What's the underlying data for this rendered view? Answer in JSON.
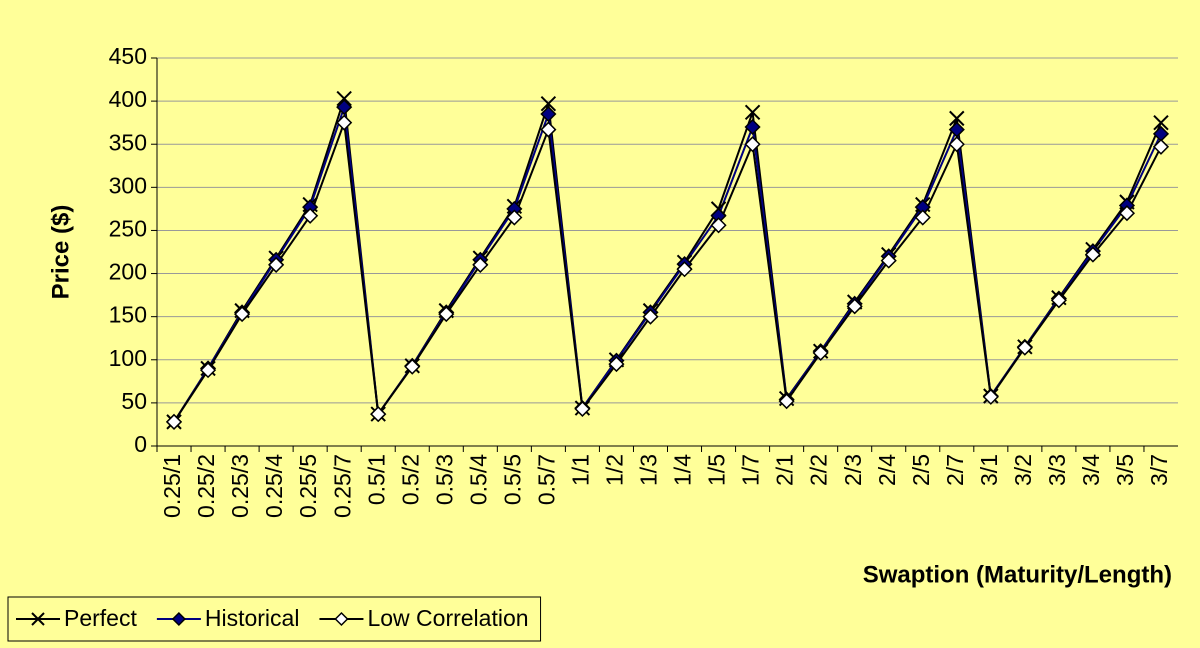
{
  "chart_data": {
    "type": "line",
    "y_label": "Price ($)",
    "x_label": "Swaption (Maturity/Length)",
    "categories": [
      "0.25/1",
      "0.25/2",
      "0.25/3",
      "0.25/4",
      "0.25/5",
      "0.25/7",
      "0.5/1",
      "0.5/2",
      "0.5/3",
      "0.5/4",
      "0.5/5",
      "0.5/7",
      "1/1",
      "1/2",
      "1/3",
      "1/4",
      "1/5",
      "1/7",
      "2/1",
      "2/2",
      "2/3",
      "2/4",
      "2/5",
      "2/7",
      "3/1",
      "3/2",
      "3/3",
      "3/4",
      "3/5",
      "3/7"
    ],
    "series": [
      {
        "name": "Perfect",
        "color": "#000000",
        "marker": "x",
        "marker_fill": "none",
        "values": [
          28,
          90,
          157,
          218,
          280,
          403,
          37,
          93,
          157,
          218,
          278,
          397,
          44,
          100,
          157,
          213,
          275,
          387,
          55,
          110,
          167,
          222,
          280,
          380,
          58,
          115,
          172,
          228,
          283,
          375
        ]
      },
      {
        "name": "Historical",
        "color": "#000080",
        "marker": "diamond",
        "marker_fill": "#000080",
        "values": [
          28,
          90,
          155,
          216,
          277,
          393,
          37,
          93,
          155,
          216,
          275,
          385,
          44,
          99,
          155,
          211,
          267,
          370,
          54,
          110,
          165,
          220,
          277,
          367,
          58,
          115,
          171,
          226,
          279,
          362
        ]
      },
      {
        "name": "Low Correlation",
        "color": "#000000",
        "marker": "diamond",
        "marker_fill": "#ffffff",
        "values": [
          28,
          88,
          153,
          210,
          267,
          375,
          37,
          92,
          153,
          210,
          265,
          367,
          43,
          95,
          150,
          205,
          256,
          350,
          52,
          108,
          162,
          215,
          265,
          350,
          57,
          114,
          169,
          222,
          270,
          347
        ]
      }
    ],
    "ylim": [
      0,
      450
    ],
    "yticks": [
      0,
      50,
      100,
      150,
      200,
      250,
      300,
      350,
      400,
      450
    ],
    "grid": true,
    "legend": "bottom-left"
  }
}
